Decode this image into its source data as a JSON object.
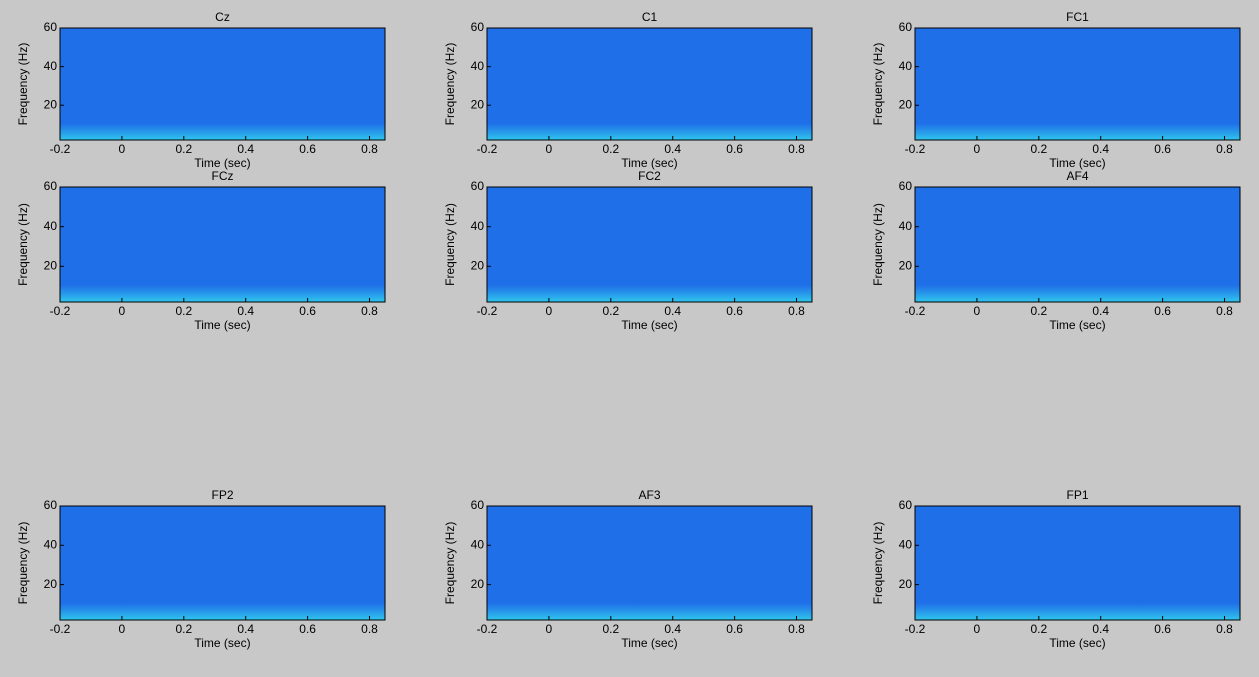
{
  "chart_data": [
    {
      "type": "contour",
      "title": "Cz",
      "xlabel": "Time (sec)",
      "ylabel": "Frequency (Hz)",
      "xlim": [
        -0.2,
        0.85
      ],
      "ylim": [
        2,
        60
      ],
      "xticks": [
        -0.2,
        0,
        0.2,
        0.4,
        0.6,
        0.8
      ],
      "yticks": [
        20,
        40,
        60
      ],
      "color": "#1f6fe8"
    },
    {
      "type": "contour",
      "title": "C1",
      "xlabel": "Time (sec)",
      "ylabel": "Frequency (Hz)",
      "xlim": [
        -0.2,
        0.85
      ],
      "ylim": [
        2,
        60
      ],
      "xticks": [
        -0.2,
        0,
        0.2,
        0.4,
        0.6,
        0.8
      ],
      "yticks": [
        20,
        40,
        60
      ],
      "color": "#1f6fe8"
    },
    {
      "type": "contour",
      "title": "FC1",
      "xlabel": "Time (sec)",
      "ylabel": "Frequency (Hz)",
      "xlim": [
        -0.2,
        0.85
      ],
      "ylim": [
        2,
        60
      ],
      "xticks": [
        -0.2,
        0,
        0.2,
        0.4,
        0.6,
        0.8
      ],
      "yticks": [
        20,
        40,
        60
      ],
      "color": "#1f6fe8"
    },
    {
      "type": "contour",
      "title": "FCz",
      "xlabel": "Time (sec)",
      "ylabel": "Frequency (Hz)",
      "xlim": [
        -0.2,
        0.85
      ],
      "ylim": [
        2,
        60
      ],
      "xticks": [
        -0.2,
        0,
        0.2,
        0.4,
        0.6,
        0.8
      ],
      "yticks": [
        20,
        40,
        60
      ],
      "color": "#1f6fe8"
    },
    {
      "type": "contour",
      "title": "FC2",
      "xlabel": "Time (sec)",
      "ylabel": "Frequency (Hz)",
      "xlim": [
        -0.2,
        0.85
      ],
      "ylim": [
        2,
        60
      ],
      "xticks": [
        -0.2,
        0,
        0.2,
        0.4,
        0.6,
        0.8
      ],
      "yticks": [
        20,
        40,
        60
      ],
      "color": "#1f6fe8"
    },
    {
      "type": "contour",
      "title": "AF4",
      "xlabel": "Time (sec)",
      "ylabel": "Frequency (Hz)",
      "xlim": [
        -0.2,
        0.85
      ],
      "ylim": [
        2,
        60
      ],
      "xticks": [
        -0.2,
        0,
        0.2,
        0.4,
        0.6,
        0.8
      ],
      "yticks": [
        20,
        40,
        60
      ],
      "color": "#1f6fe8"
    },
    {
      "type": "contour",
      "title": "FP2",
      "xlabel": "Time (sec)",
      "ylabel": "Frequency (Hz)",
      "xlim": [
        -0.2,
        0.85
      ],
      "ylim": [
        2,
        60
      ],
      "xticks": [
        -0.2,
        0,
        0.2,
        0.4,
        0.6,
        0.8
      ],
      "yticks": [
        20,
        40,
        60
      ],
      "color": "#1f6fe8"
    },
    {
      "type": "contour",
      "title": "AF3",
      "xlabel": "Time (sec)",
      "ylabel": "Frequency (Hz)",
      "xlim": [
        -0.2,
        0.85
      ],
      "ylim": [
        2,
        60
      ],
      "xticks": [
        -0.2,
        0,
        0.2,
        0.4,
        0.6,
        0.8
      ],
      "yticks": [
        20,
        40,
        60
      ],
      "color": "#1f6fe8"
    },
    {
      "type": "contour",
      "title": "FP1",
      "xlabel": "Time (sec)",
      "ylabel": "Frequency (Hz)",
      "xlim": [
        -0.2,
        0.85
      ],
      "ylim": [
        2,
        60
      ],
      "xticks": [
        -0.2,
        0,
        0.2,
        0.4,
        0.6,
        0.8
      ],
      "yticks": [
        20,
        40,
        60
      ],
      "color": "#1f6fe8"
    }
  ]
}
